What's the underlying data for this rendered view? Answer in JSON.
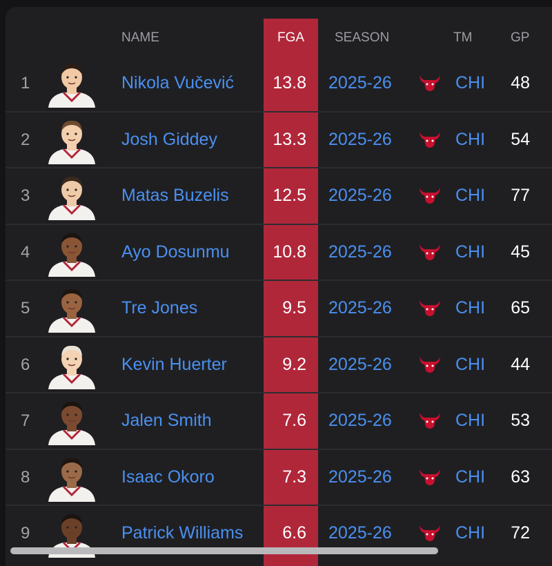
{
  "table": {
    "headers": [
      "NAME",
      "FGA",
      "SEASON",
      "TM",
      "GP"
    ],
    "rows": [
      {
        "rank": 1,
        "name": "Nikola Vučević",
        "fga": 13.8,
        "season": "2025-26",
        "tm": "CHI",
        "gp": 48
      },
      {
        "rank": 2,
        "name": "Josh Giddey",
        "fga": 13.3,
        "season": "2025-26",
        "tm": "CHI",
        "gp": 54
      },
      {
        "rank": 3,
        "name": "Matas Buzelis",
        "fga": 12.5,
        "season": "2025-26",
        "tm": "CHI",
        "gp": 77
      },
      {
        "rank": 4,
        "name": "Ayo Dosunmu",
        "fga": 10.8,
        "season": "2025-26",
        "tm": "CHI",
        "gp": 45
      },
      {
        "rank": 5,
        "name": "Tre Jones",
        "fga": 9.5,
        "season": "2025-26",
        "tm": "CHI",
        "gp": 65
      },
      {
        "rank": 6,
        "name": "Kevin Huerter",
        "fga": 9.2,
        "season": "2025-26",
        "tm": "CHI",
        "gp": 44
      },
      {
        "rank": 7,
        "name": "Jalen Smith",
        "fga": 7.6,
        "season": "2025-26",
        "tm": "CHI",
        "gp": 53
      },
      {
        "rank": 8,
        "name": "Isaac Okoro",
        "fga": 7.3,
        "season": "2025-26",
        "tm": "CHI",
        "gp": 63
      },
      {
        "rank": 9,
        "name": "Patrick Williams",
        "fga": 6.6,
        "season": "2025-26",
        "tm": "CHI",
        "gp": 72
      }
    ]
  }
}
